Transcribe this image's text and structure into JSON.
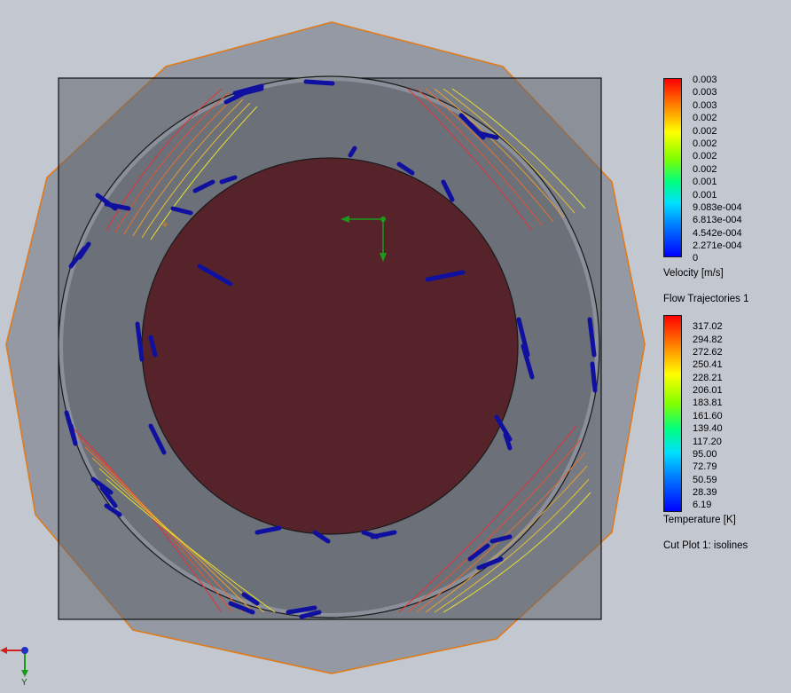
{
  "velocity_legend": {
    "ticks": [
      "0.003",
      "0.003",
      "0.003",
      "0.002",
      "0.002",
      "0.002",
      "0.002",
      "0.002",
      "0.001",
      "0.001",
      "9.083e-004",
      "6.813e-004",
      "4.542e-004",
      "2.271e-004",
      "0"
    ],
    "title": "Velocity [m/s]"
  },
  "trajectory_label": "Flow Trajectories 1",
  "temperature_legend": {
    "ticks": [
      "317.02",
      "294.82",
      "272.62",
      "250.41",
      "228.21",
      "206.01",
      "183.81",
      "161.60",
      "139.40",
      "117.20",
      "95.00",
      "72.79",
      "50.59",
      "28.39",
      "6.19"
    ],
    "title": "Temperature [K]"
  },
  "cut_plot_label": "Cut Plot 1: isolines",
  "triad": {
    "y_label": "Y"
  },
  "colors": {
    "background": "#c2c7d0",
    "outer_polygon_stroke": "#e07a1a",
    "inner_disk": "#56232a",
    "trajectory": "#1010a0",
    "isoline_warm": "#e8303a",
    "isoline_yellow": "#e8e030",
    "axis_green": "#1a9a1a",
    "axis_red": "#d02020",
    "axis_blue": "#2030c0"
  }
}
